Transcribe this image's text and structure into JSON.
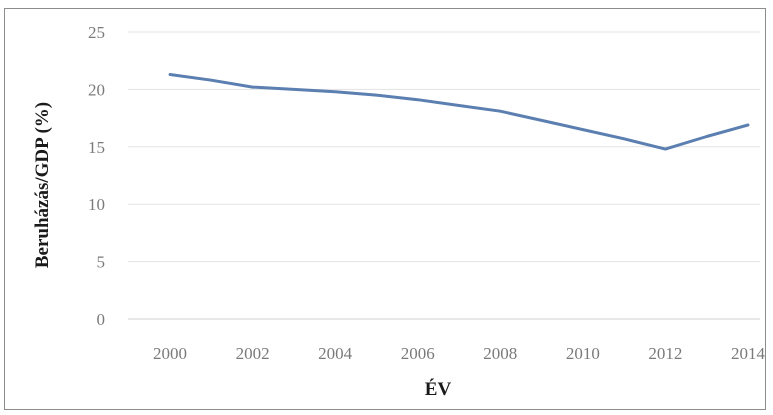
{
  "chart_data": {
    "type": "line",
    "title": "",
    "xlabel": "ÉV",
    "ylabel": "Beruházás/GDP (%)",
    "x": [
      2000,
      2001,
      2002,
      2003,
      2004,
      2005,
      2006,
      2007,
      2008,
      2009,
      2010,
      2011,
      2012,
      2013,
      2014
    ],
    "series": [
      {
        "color": "#5b7fb0",
        "values": [
          21.3,
          20.8,
          20.2,
          20.0,
          19.8,
          19.5,
          19.1,
          18.6,
          18.1,
          17.3,
          16.5,
          15.7,
          14.8,
          15.9,
          16.9
        ]
      }
    ],
    "xticks": [
      "2000",
      "2002",
      "2004",
      "2006",
      "2008",
      "2010",
      "2012",
      "2014"
    ],
    "yticks": [
      "0",
      "5",
      "10",
      "15",
      "20",
      "25"
    ],
    "ylim": [
      0,
      25
    ],
    "xlim": [
      2000,
      2014
    ],
    "grid": true,
    "legend": "none"
  }
}
